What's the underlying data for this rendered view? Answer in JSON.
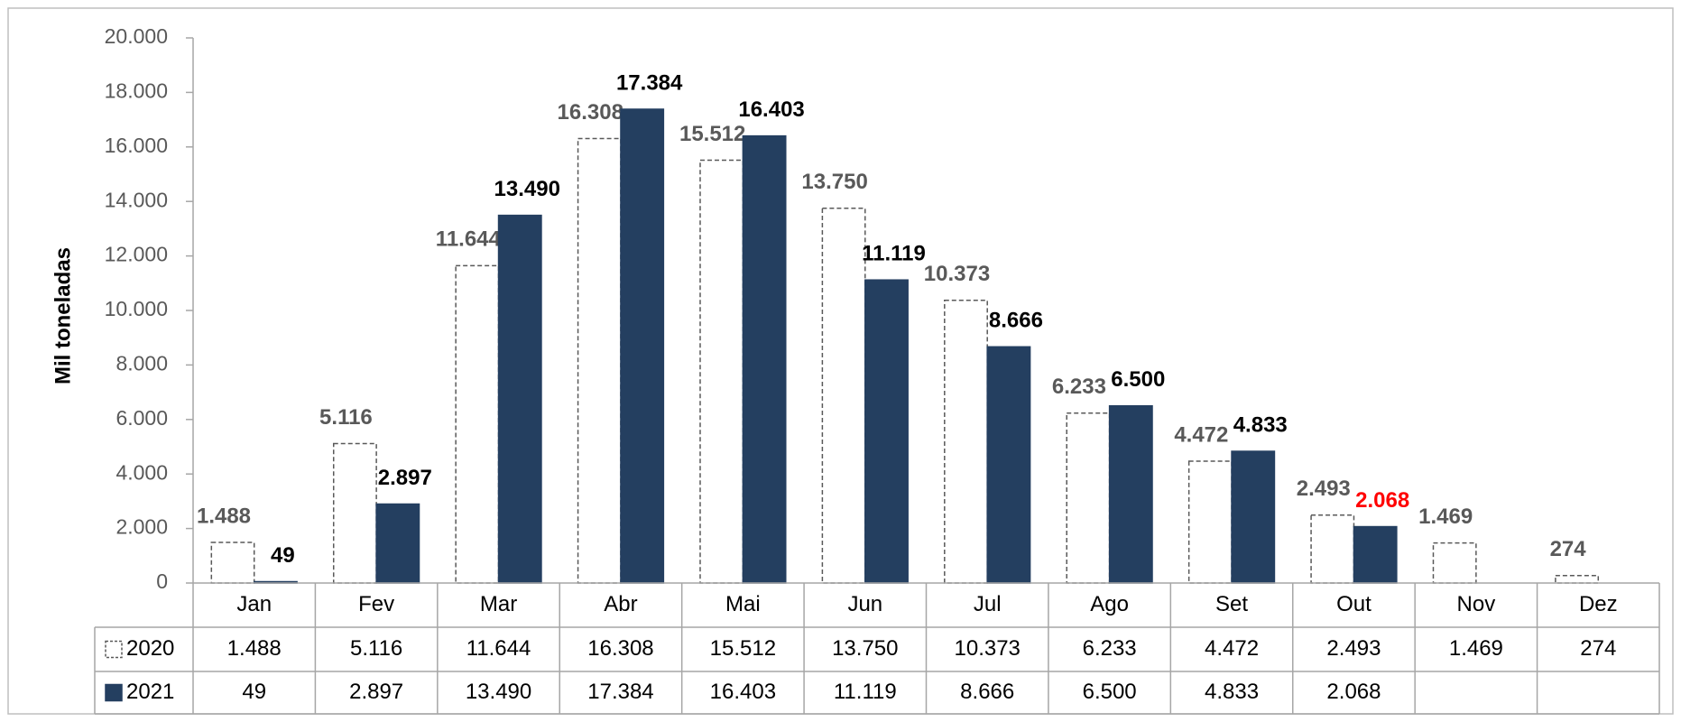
{
  "chart_data": {
    "type": "bar",
    "y_label": "Mil toneladas",
    "categories": [
      "Jan",
      "Fev",
      "Mar",
      "Abr",
      "Mai",
      "Jun",
      "Jul",
      "Ago",
      "Set",
      "Out",
      "Nov",
      "Dez"
    ],
    "series": [
      {
        "name": "2020",
        "color": "#ffffff",
        "border": "#595959",
        "dashed": true,
        "label_color": "#595959",
        "values": [
          1488,
          5116,
          11644,
          16308,
          15512,
          13750,
          10373,
          6233,
          4472,
          2493,
          1469,
          274
        ],
        "value_labels": [
          "1.488",
          "5.116",
          "11.644",
          "16.308",
          "15.512",
          "13.750",
          "10.373",
          "6.233",
          "4.472",
          "2.493",
          "1.469",
          "274"
        ]
      },
      {
        "name": "2021",
        "color": "#243f60",
        "border": "#243f60",
        "dashed": false,
        "label_color": "#000000",
        "highlight_label": {
          "category": "Out",
          "color": "#ff0000"
        },
        "values": [
          49,
          2897,
          13490,
          17384,
          16403,
          11119,
          8666,
          6500,
          4833,
          2068,
          null,
          null
        ],
        "value_labels": [
          "49",
          "2.897",
          "13.490",
          "17.384",
          "16.403",
          "11.119",
          "8.666",
          "6.500",
          "4.833",
          "2.068",
          null,
          null
        ]
      }
    ],
    "ylim": [
      0,
      20000
    ],
    "yticks": [
      0,
      {
        "value": 2000,
        "label": "2.000"
      },
      {
        "value": 4000,
        "label": "4.000"
      },
      {
        "value": 6000,
        "label": "6.000"
      },
      {
        "value": 8000,
        "label": "8.000"
      },
      {
        "value": 10000,
        "label": "10.000"
      },
      {
        "value": 12000,
        "label": "12.000"
      },
      {
        "value": 14000,
        "label": "14.000"
      },
      {
        "value": 16000,
        "label": "16.000"
      },
      {
        "value": 18000,
        "label": "18.000"
      },
      {
        "value": 20000,
        "label": "20.000"
      }
    ],
    "grid": false,
    "data_table": true
  }
}
